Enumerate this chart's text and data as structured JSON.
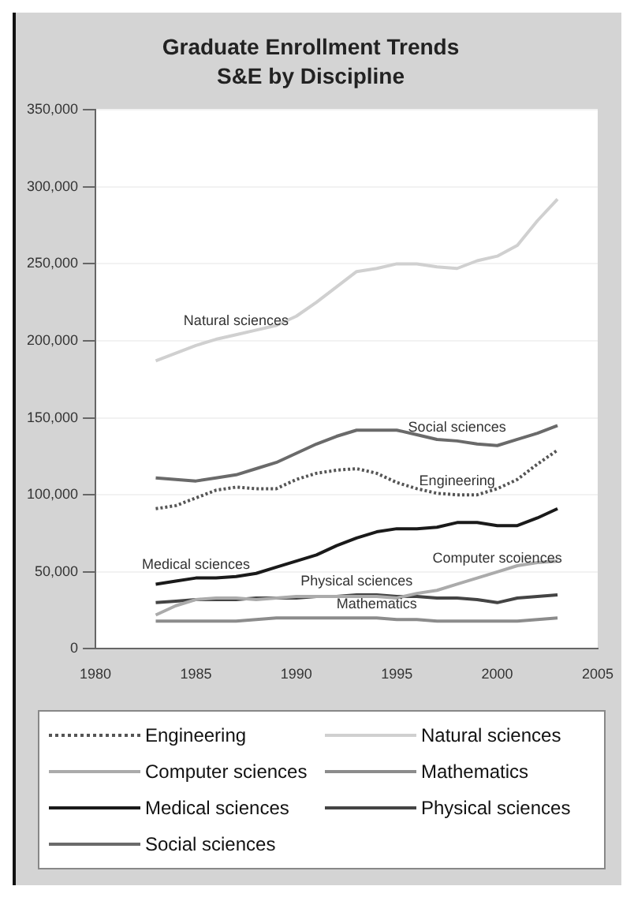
{
  "chart_data": {
    "type": "line",
    "title": "Graduate Enrollment Trends",
    "subtitle": "S&E by Discipline",
    "x": [
      1983,
      1984,
      1985,
      1986,
      1987,
      1988,
      1989,
      1990,
      1991,
      1992,
      1993,
      1994,
      1995,
      1996,
      1997,
      1998,
      1999,
      2000,
      2001,
      2002,
      2003
    ],
    "xlim": [
      1980,
      2005
    ],
    "xticks": [
      1980,
      1985,
      1990,
      1995,
      2000,
      2005
    ],
    "ylim": [
      0,
      350000
    ],
    "yticks": [
      0,
      {
        "value": 50000,
        "label": "50,000"
      },
      {
        "value": 100000,
        "label": "100,000"
      },
      {
        "value": 150000,
        "label": "150,000"
      },
      {
        "value": 200000,
        "label": "200,000"
      },
      {
        "value": 250000,
        "label": "250,000"
      },
      {
        "value": 300000,
        "label": "300,000"
      },
      {
        "value": 350000,
        "label": "350,000"
      }
    ],
    "grid": "y",
    "legend": "bottom",
    "marker": "none",
    "series": [
      {
        "name": "Engineering",
        "color": "#555555",
        "line_style": "dotted",
        "values": [
          91000,
          93000,
          98000,
          103000,
          105000,
          104000,
          104000,
          110000,
          114000,
          116000,
          117000,
          114000,
          108000,
          104000,
          101000,
          100000,
          100000,
          104000,
          110000,
          120000,
          129000
        ]
      },
      {
        "name": "Natural sciences",
        "color": "#d0d0d0",
        "values": [
          187000,
          192000,
          197000,
          201000,
          204000,
          207000,
          210000,
          216000,
          225000,
          235000,
          245000,
          247000,
          250000,
          250000,
          248000,
          247000,
          252000,
          255000,
          262000,
          278000,
          292000
        ]
      },
      {
        "name": "Computer sciences",
        "color": "#ababab",
        "values": [
          22000,
          28000,
          32000,
          33000,
          33000,
          32000,
          33000,
          34000,
          34000,
          34000,
          34000,
          34000,
          33000,
          36000,
          38000,
          42000,
          46000,
          50000,
          54000,
          56000,
          57000
        ]
      },
      {
        "name": "Mathematics",
        "color": "#8c8c8c",
        "values": [
          18000,
          18000,
          18000,
          18000,
          18000,
          19000,
          20000,
          20000,
          20000,
          20000,
          20000,
          20000,
          19000,
          19000,
          18000,
          18000,
          18000,
          18000,
          18000,
          19000,
          20000
        ]
      },
      {
        "name": "Medical sciences",
        "color": "#1a1a1a",
        "values": [
          42000,
          44000,
          46000,
          46000,
          47000,
          49000,
          53000,
          57000,
          61000,
          67000,
          72000,
          76000,
          78000,
          78000,
          79000,
          82000,
          82000,
          80000,
          80000,
          85000,
          91000
        ]
      },
      {
        "name": "Physical sciences",
        "color": "#444444",
        "values": [
          30000,
          31000,
          32000,
          32000,
          32000,
          33000,
          33000,
          33000,
          34000,
          34000,
          35000,
          35000,
          34000,
          34000,
          33000,
          33000,
          32000,
          30000,
          33000,
          34000,
          35000
        ]
      },
      {
        "name": "Social sciences",
        "color": "#6a6a6a",
        "values": [
          111000,
          110000,
          109000,
          111000,
          113000,
          117000,
          121000,
          127000,
          133000,
          138000,
          142000,
          142000,
          142000,
          139000,
          136000,
          135000,
          133000,
          132000,
          136000,
          140000,
          145000
        ]
      }
    ],
    "annotations": [
      {
        "text": "Natural sciences",
        "x": 1987,
        "y": 204000
      },
      {
        "text": "Social sciences",
        "x": 1998,
        "y": 135000
      },
      {
        "text": "Engineering",
        "x": 1998,
        "y": 100000
      },
      {
        "text": "Medical sciences",
        "x": 1985,
        "y": 46000
      },
      {
        "text": "Computer scoiences",
        "x": 2000,
        "y": 50000
      },
      {
        "text": "Physical sciences",
        "x": 1993,
        "y": 35000
      },
      {
        "text": "Mathematics",
        "x": 1994,
        "y": 20000
      }
    ]
  }
}
